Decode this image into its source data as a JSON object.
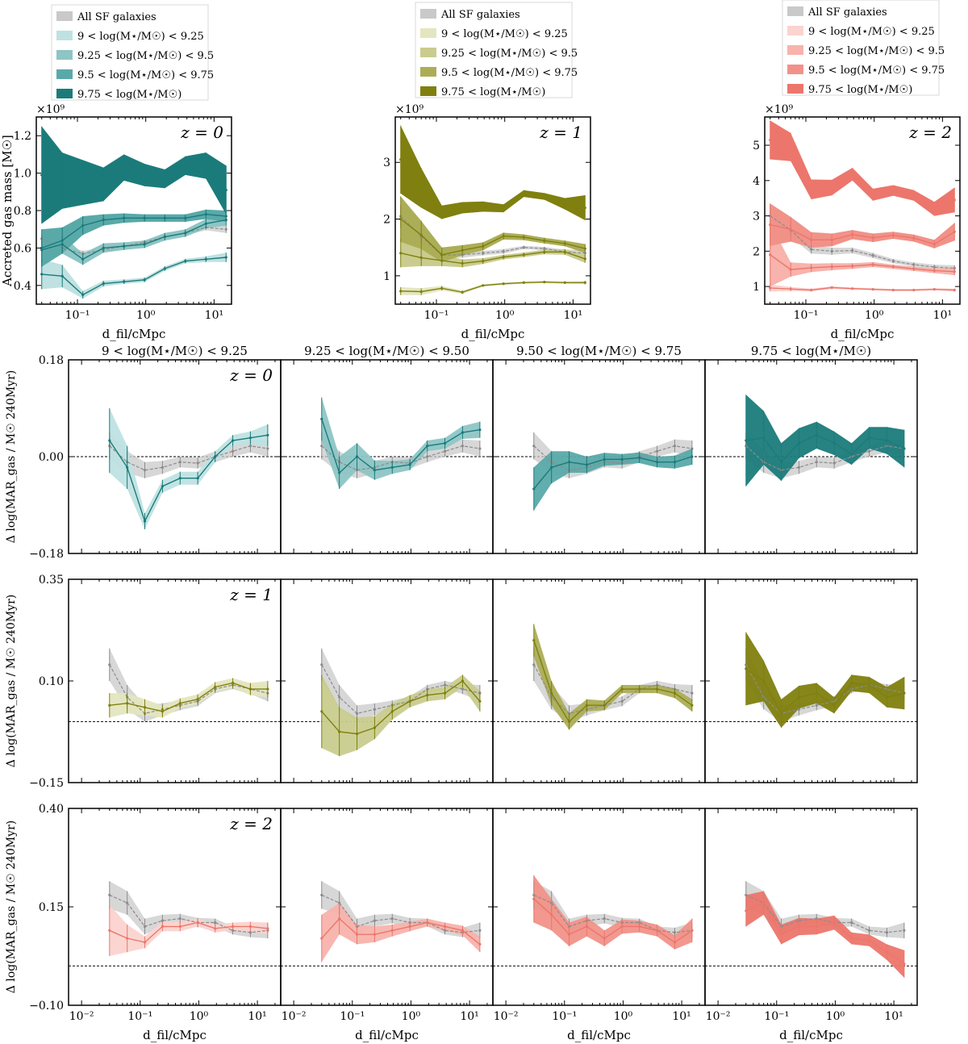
{
  "figure": {
    "legend_all_label": "All SF galaxies",
    "legend_bins": [
      "9 < log(M⋆/M☉) < 9.25",
      "9.25 < log(M⋆/M☉) < 9.5",
      "9.5 < log(M⋆/M☉) < 9.75",
      "9.75 < log(M⋆/M☉)"
    ],
    "column_titles": [
      "9 < log(M⋆/M☉) < 9.25",
      "9.25 < log(M⋆/M☉) < 9.50",
      "9.50 < log(M⋆/M☉) < 9.75",
      "9.75 < log(M⋆/M☉)"
    ],
    "redshift_labels": [
      "z = 0",
      "z = 1",
      "z = 2"
    ],
    "xlabel": "d_fil/cMpc",
    "top_ylabel": "Accreted gas mass [M☉]",
    "bottom_ylabel": "Δ log(MAR_gas / M☉ 240Myr)",
    "multiplier": "×10⁹",
    "x_ticks": [
      "10⁻²",
      "10⁻¹",
      "10⁰",
      "10¹"
    ],
    "colors": {
      "z0": [
        "#bfe1e1",
        "#8ec5c5",
        "#5aa9a9",
        "#1b7b7b"
      ],
      "z1": [
        "#e4e6bf",
        "#c9cc8e",
        "#acae57",
        "#7f800f"
      ],
      "z2": [
        "#fbd3cf",
        "#f7b3ac",
        "#f19289",
        "#ec766c"
      ],
      "all": "#c9c9c9",
      "all_line": "#8c8c8c"
    }
  },
  "chart_data": {
    "type": "line",
    "x": [
      0.03,
      0.06,
      0.12,
      0.24,
      0.48,
      0.96,
      1.9,
      3.8,
      7.6,
      15
    ],
    "top_panels": [
      {
        "z": "z = 0",
        "ylim": [
          0.3,
          1.3
        ],
        "yticks": [
          0.4,
          0.6,
          0.8,
          1.0,
          1.2
        ],
        "all": {
          "values": [
            0.65,
            0.6,
            0.57,
            0.59,
            0.61,
            0.63,
            0.66,
            0.68,
            0.71,
            0.7
          ],
          "err": [
            0.02,
            0.02,
            0.015,
            0.012,
            0.012,
            0.012,
            0.012,
            0.012,
            0.015,
            0.02
          ]
        },
        "series": [
          {
            "values": [
              0.46,
              0.45,
              0.35,
              0.41,
              0.42,
              0.43,
              0.49,
              0.53,
              0.54,
              0.55
            ],
            "err": [
              0.08,
              0.06,
              0.02,
              0.015,
              0.012,
              0.012,
              0.012,
              0.012,
              0.015,
              0.025
            ]
          },
          {
            "values": [
              0.59,
              0.62,
              0.54,
              0.6,
              0.61,
              0.62,
              0.66,
              0.68,
              0.73,
              0.75
            ],
            "err": [
              0.07,
              0.05,
              0.03,
              0.025,
              0.02,
              0.02,
              0.02,
              0.02,
              0.025,
              0.03
            ]
          },
          {
            "values": [
              0.6,
              0.64,
              0.72,
              0.75,
              0.76,
              0.76,
              0.76,
              0.76,
              0.78,
              0.77
            ],
            "err": [
              0.1,
              0.07,
              0.05,
              0.03,
              0.025,
              0.02,
              0.02,
              0.02,
              0.025,
              0.03
            ]
          },
          {
            "values": [
              0.99,
              0.96,
              0.95,
              0.94,
              1.03,
              0.99,
              0.97,
              1.04,
              1.04,
              0.91
            ],
            "err": [
              0.26,
              0.15,
              0.12,
              0.09,
              0.07,
              0.06,
              0.05,
              0.05,
              0.07,
              0.13
            ]
          }
        ]
      },
      {
        "z": "z = 1",
        "ylim": [
          0.5,
          3.8
        ],
        "yticks": [
          1,
          2,
          3
        ],
        "all": {
          "values": [
            2.05,
            1.7,
            1.36,
            1.37,
            1.4,
            1.43,
            1.5,
            1.48,
            1.42,
            1.4
          ],
          "err": [
            0.2,
            0.12,
            0.06,
            0.05,
            0.04,
            0.04,
            0.03,
            0.03,
            0.04,
            0.06
          ]
        },
        "series": [
          {
            "values": [
              0.73,
              0.72,
              0.78,
              0.71,
              0.83,
              0.86,
              0.88,
              0.89,
              0.88,
              0.88
            ],
            "err": [
              0.07,
              0.06,
              0.04,
              0.03,
              0.02,
              0.02,
              0.02,
              0.02,
              0.02,
              0.03
            ]
          },
          {
            "values": [
              1.4,
              1.32,
              1.27,
              1.22,
              1.26,
              1.33,
              1.37,
              1.42,
              1.42,
              1.3
            ],
            "err": [
              0.25,
              0.15,
              0.1,
              0.07,
              0.05,
              0.04,
              0.04,
              0.04,
              0.05,
              0.07
            ]
          },
          {
            "values": [
              2.0,
              1.72,
              1.37,
              1.45,
              1.52,
              1.7,
              1.68,
              1.62,
              1.57,
              1.48
            ],
            "err": [
              0.4,
              0.25,
              0.13,
              0.09,
              0.07,
              0.06,
              0.05,
              0.05,
              0.05,
              0.08
            ]
          },
          {
            "values": [
              3.05,
              2.55,
              2.12,
              2.2,
              2.22,
              2.19,
              2.45,
              2.4,
              2.27,
              2.2
            ],
            "err": [
              0.6,
              0.35,
              0.12,
              0.1,
              0.09,
              0.07,
              0.06,
              0.06,
              0.1,
              0.22
            ]
          }
        ]
      },
      {
        "z": "z = 2",
        "ylim": [
          0.5,
          5.8
        ],
        "yticks": [
          1,
          2,
          3,
          4,
          5
        ],
        "all": {
          "values": [
            3.0,
            2.6,
            2.05,
            2.0,
            2.02,
            1.88,
            1.72,
            1.62,
            1.55,
            1.52
          ],
          "err": [
            0.3,
            0.2,
            0.12,
            0.1,
            0.08,
            0.07,
            0.06,
            0.06,
            0.07,
            0.08
          ]
        },
        "series": [
          {
            "values": [
              0.96,
              0.93,
              0.9,
              0.97,
              0.94,
              0.92,
              0.9,
              0.9,
              0.92,
              0.9
            ],
            "err": [
              0.1,
              0.06,
              0.04,
              0.04,
              0.03,
              0.03,
              0.03,
              0.03,
              0.03,
              0.04
            ]
          },
          {
            "values": [
              1.9,
              1.48,
              1.53,
              1.56,
              1.58,
              1.62,
              1.56,
              1.5,
              1.45,
              1.42
            ],
            "err": [
              0.9,
              0.2,
              0.12,
              0.1,
              0.08,
              0.07,
              0.06,
              0.06,
              0.07,
              0.1
            ]
          },
          {
            "values": [
              2.75,
              2.62,
              2.32,
              2.32,
              2.47,
              2.38,
              2.45,
              2.37,
              2.2,
              2.55
            ],
            "err": [
              0.6,
              0.35,
              0.22,
              0.18,
              0.13,
              0.12,
              0.1,
              0.1,
              0.12,
              0.25
            ]
          },
          {
            "values": [
              5.15,
              4.95,
              3.75,
              3.8,
              4.18,
              3.6,
              3.72,
              3.58,
              3.2,
              3.45
            ],
            "err": [
              0.55,
              0.4,
              0.28,
              0.22,
              0.18,
              0.17,
              0.15,
              0.15,
              0.2,
              0.35
            ]
          }
        ]
      }
    ],
    "grid_rows": [
      {
        "z": "z = 0",
        "ylim": [
          -0.18,
          0.18
        ],
        "yticks": [
          -0.18,
          0.0,
          0.18
        ],
        "all": {
          "values": [
            0.02,
            -0.01,
            -0.025,
            -0.02,
            -0.01,
            -0.012,
            0.0,
            0.01,
            0.02,
            0.015
          ],
          "err": [
            0.025,
            0.02,
            0.015,
            0.012,
            0.01,
            0.01,
            0.01,
            0.01,
            0.012,
            0.015
          ]
        },
        "panels": [
          {
            "values": [
              0.03,
              -0.02,
              -0.12,
              -0.055,
              -0.04,
              -0.04,
              0.0,
              0.03,
              0.035,
              0.04
            ],
            "err": [
              0.06,
              0.04,
              0.015,
              0.012,
              0.012,
              0.012,
              0.01,
              0.01,
              0.012,
              0.02
            ]
          },
          {
            "values": [
              0.07,
              -0.03,
              0.0,
              -0.025,
              -0.02,
              -0.015,
              0.02,
              0.025,
              0.045,
              0.05
            ],
            "err": [
              0.04,
              0.03,
              0.025,
              0.018,
              0.012,
              0.01,
              0.01,
              0.01,
              0.012,
              0.015
            ]
          },
          {
            "values": [
              -0.06,
              -0.02,
              -0.01,
              -0.015,
              -0.005,
              -0.005,
              -0.002,
              -0.01,
              -0.01,
              0.0
            ],
            "err": [
              0.04,
              0.03,
              0.02,
              0.015,
              0.012,
              0.01,
              0.01,
              0.01,
              0.012,
              0.015
            ]
          },
          {
            "values": [
              0.03,
              0.035,
              -0.01,
              0.025,
              0.04,
              0.025,
              0.005,
              0.035,
              0.03,
              0.015
            ],
            "err": [
              0.085,
              0.05,
              0.035,
              0.028,
              0.025,
              0.022,
              0.02,
              0.02,
              0.025,
              0.035
            ]
          }
        ]
      },
      {
        "z": "z = 1",
        "ylim": [
          -0.15,
          0.35
        ],
        "yticks": [
          -0.15,
          0.1,
          0.35
        ],
        "all": {
          "values": [
            0.14,
            0.06,
            0.02,
            0.03,
            0.04,
            0.05,
            0.08,
            0.09,
            0.08,
            0.07
          ],
          "err": [
            0.04,
            0.03,
            0.02,
            0.015,
            0.012,
            0.012,
            0.01,
            0.01,
            0.012,
            0.02
          ]
        },
        "panels": [
          {
            "values": [
              0.04,
              0.045,
              0.035,
              0.025,
              0.045,
              0.055,
              0.085,
              0.095,
              0.08,
              0.08
            ],
            "err": [
              0.03,
              0.025,
              0.02,
              0.015,
              0.012,
              0.012,
              0.012,
              0.012,
              0.015,
              0.02
            ]
          },
          {
            "values": [
              0.025,
              -0.025,
              -0.03,
              -0.015,
              0.025,
              0.05,
              0.065,
              0.07,
              0.1,
              0.05
            ],
            "err": [
              0.09,
              0.06,
              0.04,
              0.028,
              0.02,
              0.015,
              0.015,
              0.015,
              0.015,
              0.025
            ]
          },
          {
            "values": [
              0.2,
              0.07,
              0.0,
              0.04,
              0.04,
              0.08,
              0.08,
              0.08,
              0.07,
              0.04
            ],
            "err": [
              0.04,
              0.03,
              0.02,
              0.015,
              0.012,
              0.01,
              0.01,
              0.01,
              0.012,
              0.015
            ]
          },
          {
            "values": [
              0.13,
              0.1,
              0.02,
              0.06,
              0.07,
              0.04,
              0.095,
              0.09,
              0.06,
              0.07
            ],
            "err": [
              0.09,
              0.05,
              0.035,
              0.028,
              0.025,
              0.02,
              0.02,
              0.02,
              0.025,
              0.04
            ]
          }
        ]
      },
      {
        "z": "z = 2",
        "ylim": [
          -0.1,
          0.4
        ],
        "yticks": [
          -0.1,
          0.15,
          0.4
        ],
        "all": {
          "values": [
            0.18,
            0.16,
            0.1,
            0.115,
            0.12,
            0.11,
            0.11,
            0.09,
            0.085,
            0.09
          ],
          "err": [
            0.035,
            0.03,
            0.02,
            0.015,
            0.012,
            0.012,
            0.01,
            0.01,
            0.012,
            0.02
          ]
        },
        "panels": [
          {
            "values": [
              0.09,
              0.07,
              0.06,
              0.1,
              0.1,
              0.11,
              0.095,
              0.1,
              0.1,
              0.095
            ],
            "err": [
              0.065,
              0.035,
              0.015,
              0.012,
              0.012,
              0.01,
              0.01,
              0.01,
              0.012,
              0.015
            ]
          },
          {
            "values": [
              0.07,
              0.12,
              0.08,
              0.08,
              0.09,
              0.1,
              0.11,
              0.1,
              0.09,
              0.055
            ],
            "err": [
              0.06,
              0.04,
              0.025,
              0.02,
              0.015,
              0.012,
              0.01,
              0.01,
              0.012,
              0.02
            ]
          },
          {
            "values": [
              0.17,
              0.13,
              0.08,
              0.1,
              0.07,
              0.1,
              0.1,
              0.09,
              0.06,
              0.09
            ],
            "err": [
              0.06,
              0.04,
              0.03,
              0.025,
              0.02,
              0.018,
              0.015,
              0.015,
              0.018,
              0.03
            ]
          },
          {
            "values": [
              0.14,
              0.16,
              0.08,
              0.1,
              0.1,
              0.11,
              0.07,
              0.065,
              0.035,
              0.005
            ],
            "err": [
              0.04,
              0.03,
              0.025,
              0.022,
              0.02,
              0.018,
              0.015,
              0.015,
              0.02,
              0.035
            ]
          }
        ]
      }
    ]
  }
}
